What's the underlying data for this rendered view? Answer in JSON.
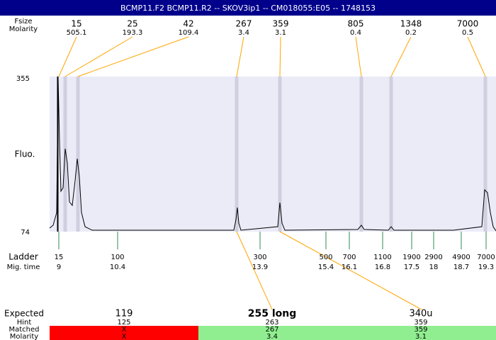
{
  "header": {
    "title": "BCMP11.F2  BCMP11.R2 -- SKOV3ip1 -- CM018055:E05 -- 1748153"
  },
  "top_rows": {
    "size_label": "Fsize",
    "molarity_label": "Molarity"
  },
  "peaks": {
    "sizes": [
      15,
      25,
      42,
      267,
      359,
      805,
      1348,
      7000
    ],
    "molarities": [
      505.1,
      193.3,
      109.4,
      3.4,
      3.1,
      0.4,
      0.2,
      0.5
    ]
  },
  "y_axis": {
    "label": "Fluo.",
    "max": 355,
    "min": 74
  },
  "ladder": {
    "label": "Ladder",
    "mig_label": "Mig. time",
    "sizes": [
      15,
      100,
      300,
      500,
      700,
      1100,
      1900,
      2900,
      4900,
      7000
    ],
    "mig_times": [
      9,
      10.4,
      13.9,
      15.4,
      16.1,
      16.8,
      17.5,
      18,
      18.7,
      19.3
    ]
  },
  "expected": {
    "label": "Expected",
    "values": [
      119,
      "255 long",
      "340u"
    ]
  },
  "hint": {
    "label": "Hint",
    "values": [
      125,
      263,
      359
    ]
  },
  "matched": {
    "label": "Matched",
    "values": [
      "X",
      267,
      359
    ]
  },
  "molarity": {
    "label": "Molarity",
    "values": [
      "X",
      3.4,
      3.1
    ]
  }
}
